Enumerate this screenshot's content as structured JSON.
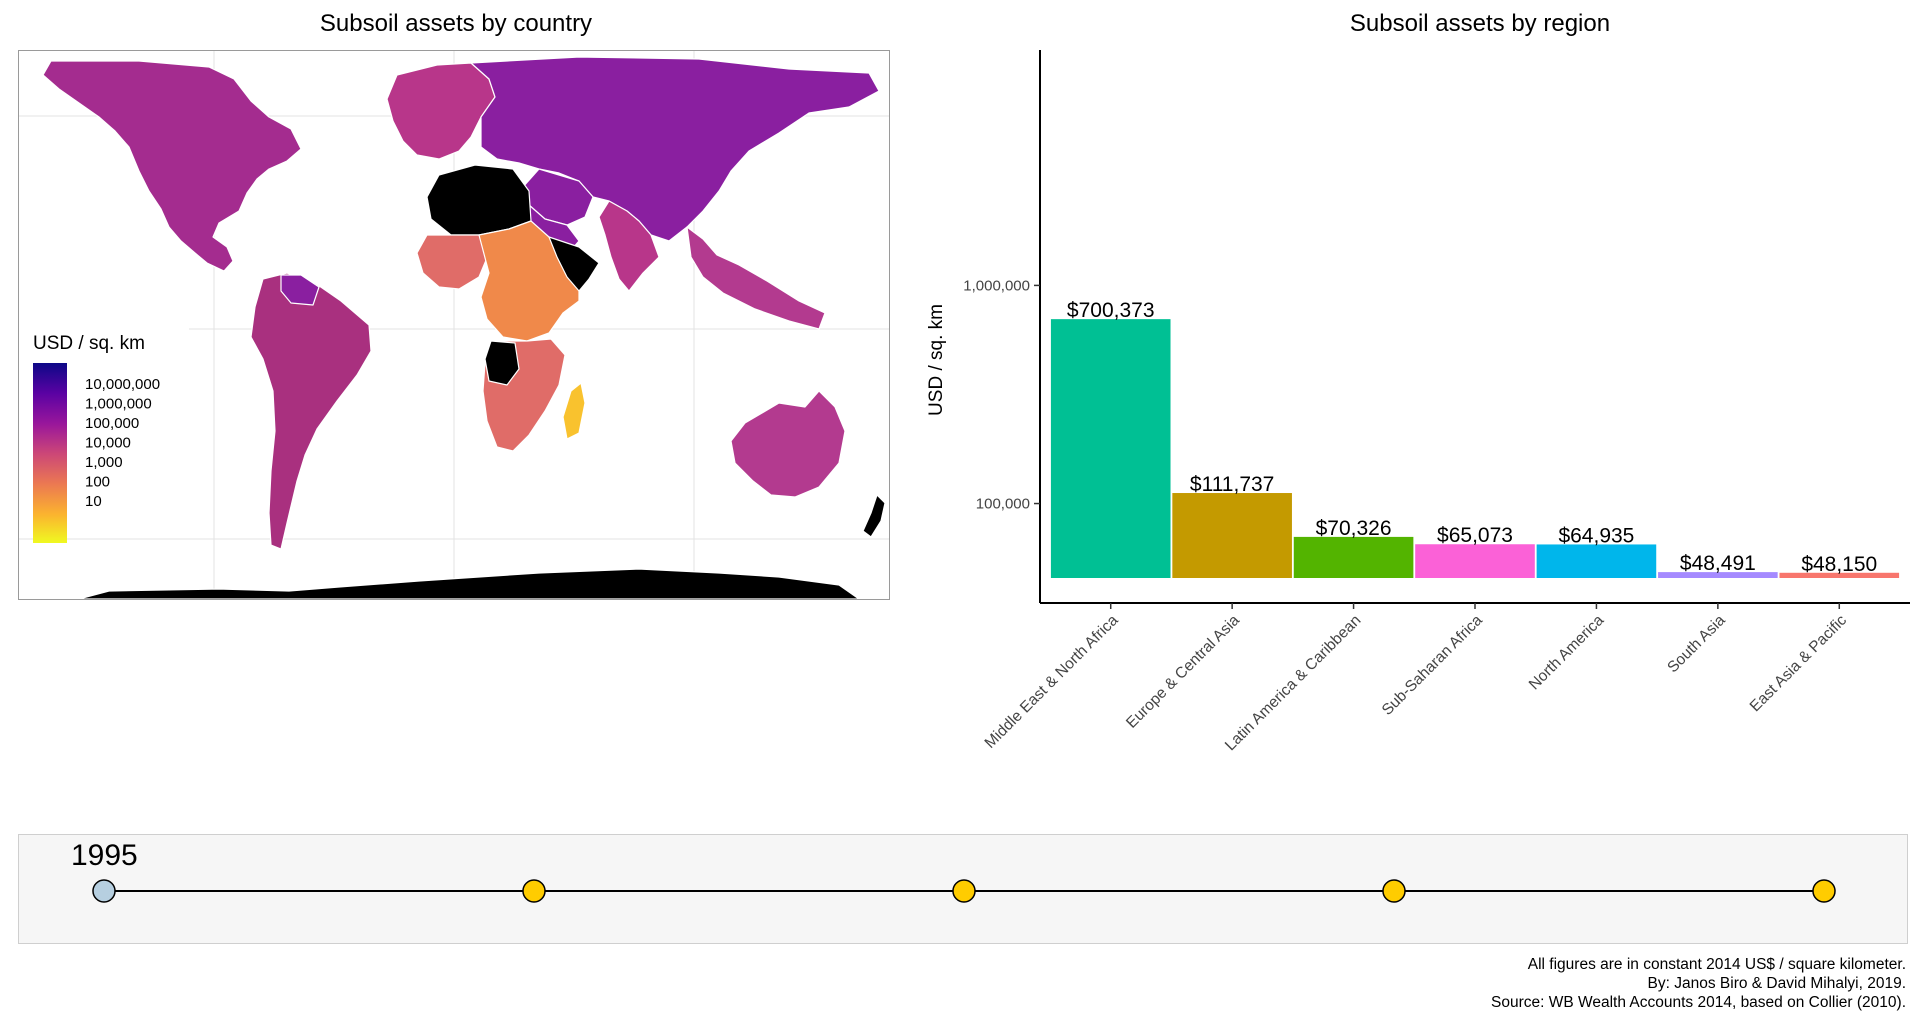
{
  "map": {
    "title": "Subsoil assets by country",
    "legend": {
      "title": "USD / sq. km",
      "labels": [
        "10,000,000",
        "1,000,000",
        "100,000",
        "10,000",
        "1,000",
        "100",
        "10"
      ],
      "gradient": [
        "#0d0887",
        "#5b02a3",
        "#9a179b",
        "#cb4678",
        "#eb7852",
        "#fbb32f",
        "#f0f921"
      ]
    },
    "na_color": "#000000",
    "region_colors": {
      "north_america": "#a42c8f",
      "greenland": "#ffffff",
      "russia": "#8a1fa0",
      "europe": "#b8368a",
      "south_america": "#a9307f",
      "australia": "#b33a8f",
      "africa_west": "#e06c68",
      "africa_orange": "#f0894a",
      "madagascar": "#f9c22e",
      "antarctica": "#000000"
    }
  },
  "chart_data": {
    "type": "bar",
    "title": "Subsoil assets by region",
    "ylabel": "USD / sq. km",
    "xlabel": "",
    "y_scale": "log10",
    "ylim": [
      35000,
      12000000
    ],
    "yticks": [
      100000,
      1000000
    ],
    "ytick_labels": [
      "100,000",
      "1,000,000"
    ],
    "categories": [
      "Middle East & North Africa",
      "Europe & Central Asia",
      "Latin America & Caribbean",
      "Sub-Saharan Africa",
      "North America",
      "South Asia",
      "East Asia & Pacific"
    ],
    "values": [
      700373,
      111737,
      70326,
      65073,
      64935,
      48491,
      48150
    ],
    "value_labels": [
      "$700,373",
      "$111,737",
      "$70,326",
      "$65,073",
      "$64,935",
      "$48,491",
      "$48,150"
    ],
    "colors": [
      "#00c094",
      "#c49a00",
      "#53b400",
      "#fb61d7",
      "#00b6eb",
      "#a58aff",
      "#f8766d"
    ],
    "grid": false,
    "legend": "none"
  },
  "timeline": {
    "current_year": "1995",
    "points": 5,
    "active_index": 0,
    "active_color": "#b6cfe0",
    "inactive_color": "#ffcc00"
  },
  "footer": {
    "line1": "All figures are in constant 2014 US$ / square kilometer.",
    "line2": "By: Janos Biro & David Mihalyi, 2019.",
    "line3": "Source: WB Wealth Accounts 2014, based on Collier (2010)."
  }
}
